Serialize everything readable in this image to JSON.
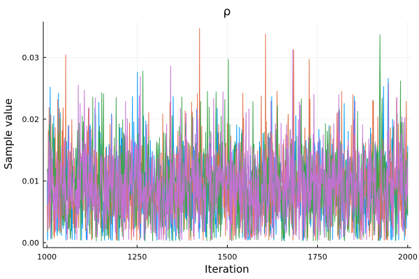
{
  "chart_data": {
    "type": "line",
    "title": "ρ",
    "xlabel": "Iteration",
    "ylabel": "Sample value",
    "xlim": [
      990,
      2010
    ],
    "ylim": [
      -0.0008,
      0.0358
    ],
    "xticks": [
      1000,
      1250,
      1500,
      1750,
      2000
    ],
    "xtick_labels": [
      "1000",
      "1250",
      "1500",
      "1750",
      "2000"
    ],
    "yticks": [
      0.0,
      0.01,
      0.02,
      0.03
    ],
    "ytick_labels": [
      "0.00",
      "0.01",
      "0.02",
      "0.03"
    ],
    "grid": true,
    "legend": "none",
    "x_range": [
      1001,
      2000
    ],
    "series": [
      {
        "color": "#009af9",
        "summary": {
          "min": 0.0004,
          "max": 0.0275,
          "mean": 0.0085
        },
        "peaks": [
          [
            1009,
            0.0252
          ],
          [
            1032,
            0.0242
          ],
          [
            1251,
            0.0276
          ],
          [
            1933,
            0.0253
          ],
          [
            1946,
            0.0266
          ]
        ]
      },
      {
        "color": "#e26f46",
        "summary": {
          "min": 0.0004,
          "max": 0.0347,
          "mean": 0.0087
        },
        "peaks": [
          [
            1052,
            0.0304
          ],
          [
            1423,
            0.0347
          ],
          [
            1606,
            0.0338
          ],
          [
            1684,
            0.0312
          ],
          [
            1727,
            0.0297
          ],
          [
            1996,
            0.0229
          ]
        ]
      },
      {
        "color": "#3da44d",
        "summary": {
          "min": 0.0003,
          "max": 0.0337,
          "mean": 0.0086
        },
        "peaks": [
          [
            1266,
            0.0278
          ],
          [
            1503,
            0.0297
          ],
          [
            1923,
            0.0337
          ],
          [
            1980,
            0.0262
          ]
        ]
      },
      {
        "color": "#c271d2",
        "summary": {
          "min": 0.0005,
          "max": 0.0313,
          "mean": 0.0088
        },
        "peaks": [
          [
            1087,
            0.0255
          ],
          [
            1259,
            0.0269
          ],
          [
            1343,
            0.0286
          ],
          [
            1681,
            0.0313
          ],
          [
            1947,
            0.0258
          ]
        ]
      }
    ]
  }
}
